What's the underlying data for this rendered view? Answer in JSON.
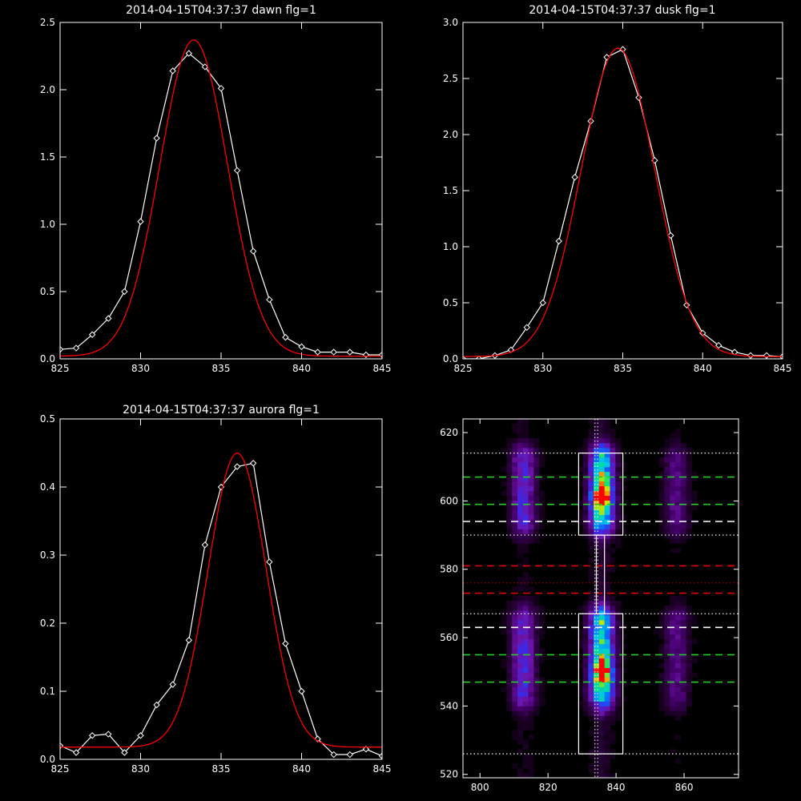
{
  "chart_data": [
    {
      "type": "line",
      "title": "2014-04-15T04:37:37 dawn flg=1",
      "xlim": [
        825,
        845
      ],
      "ylim": [
        0,
        2.5
      ],
      "xticks": [
        825,
        830,
        835,
        840,
        845
      ],
      "yticks": [
        0.0,
        0.5,
        1.0,
        1.5,
        2.0,
        2.5
      ],
      "series": [
        {
          "role": "measured",
          "color": "#ffffff",
          "marker": "diamond",
          "x": [
            825,
            826,
            827,
            828,
            829,
            830,
            831,
            832,
            833,
            834,
            835,
            836,
            837,
            838,
            839,
            840,
            841,
            842,
            843,
            844,
            845
          ],
          "y": [
            0.07,
            0.08,
            0.18,
            0.3,
            0.5,
            1.02,
            1.64,
            2.14,
            2.27,
            2.17,
            2.01,
            1.4,
            0.8,
            0.44,
            0.16,
            0.09,
            0.05,
            0.05,
            0.05,
            0.03,
            0.03
          ]
        },
        {
          "role": "fit",
          "color": "#ff0000",
          "shape": "gaussian",
          "center": 833.3,
          "sigma": 2.1,
          "amplitude": 2.35,
          "offset": 0.02
        }
      ]
    },
    {
      "type": "line",
      "title": "2014-04-15T04:37:37 dusk flg=1",
      "xlim": [
        825,
        845
      ],
      "ylim": [
        0,
        3.0
      ],
      "xticks": [
        825,
        830,
        835,
        840,
        845
      ],
      "yticks": [
        0.0,
        0.5,
        1.0,
        1.5,
        2.0,
        2.5,
        3.0
      ],
      "series": [
        {
          "role": "measured",
          "color": "#ffffff",
          "marker": "diamond",
          "x": [
            825,
            826,
            827,
            828,
            829,
            830,
            831,
            832,
            833,
            834,
            835,
            836,
            837,
            838,
            839,
            840,
            841,
            842,
            843,
            844,
            845
          ],
          "y": [
            0.0,
            0.0,
            0.03,
            0.08,
            0.28,
            0.5,
            1.05,
            1.62,
            2.12,
            2.69,
            2.76,
            2.33,
            1.77,
            1.1,
            0.48,
            0.23,
            0.12,
            0.06,
            0.03,
            0.03,
            0.02
          ]
        },
        {
          "role": "fit",
          "color": "#ff0000",
          "shape": "gaussian",
          "center": 834.7,
          "sigma": 2.3,
          "amplitude": 2.75,
          "offset": 0.02
        }
      ]
    },
    {
      "type": "line",
      "title": "2014-04-15T04:37:37 aurora flg=1",
      "xlim": [
        825,
        845
      ],
      "ylim": [
        0,
        0.5
      ],
      "xticks": [
        825,
        830,
        835,
        840,
        845
      ],
      "yticks": [
        0.0,
        0.1,
        0.2,
        0.3,
        0.4,
        0.5
      ],
      "series": [
        {
          "role": "measured",
          "color": "#ffffff",
          "marker": "diamond",
          "x": [
            825,
            826,
            827,
            828,
            829,
            830,
            831,
            832,
            833,
            834,
            835,
            836,
            837,
            838,
            839,
            840,
            841,
            842,
            843,
            844,
            845
          ],
          "y": [
            0.02,
            0.01,
            0.035,
            0.037,
            0.01,
            0.035,
            0.08,
            0.11,
            0.175,
            0.315,
            0.4,
            0.43,
            0.435,
            0.29,
            0.17,
            0.1,
            0.03,
            0.007,
            0.007,
            0.015,
            0.005
          ]
        },
        {
          "role": "fit",
          "color": "#ff0000",
          "shape": "gaussian",
          "center": 836.0,
          "sigma": 1.8,
          "amplitude": 0.432,
          "offset": 0.018
        }
      ]
    },
    {
      "type": "heatmap",
      "xlim": [
        795,
        876
      ],
      "ylim": [
        519,
        624
      ],
      "xticks": [
        800,
        820,
        840,
        860
      ],
      "yticks": [
        520,
        540,
        560,
        580,
        600,
        620
      ],
      "emission_columns_x": [
        812,
        835,
        857
      ],
      "hot_spots": [
        {
          "x": 835,
          "y": 601
        },
        {
          "x": 835,
          "y": 549
        }
      ],
      "vertical_reference_lines_x": [
        833.8,
        834.6
      ],
      "outline_boxes": [
        {
          "x": [
            829,
            842
          ],
          "y": [
            590,
            614
          ]
        },
        {
          "x": [
            829,
            842
          ],
          "y": [
            526,
            567
          ]
        },
        {
          "x": [
            834.2,
            836.6
          ],
          "y": [
            567,
            590
          ]
        }
      ],
      "horizontal_lines": [
        {
          "y": 614,
          "color": "#ffffff",
          "style": "dotted"
        },
        {
          "y": 607,
          "color": "#22cc22",
          "style": "dashed"
        },
        {
          "y": 599,
          "color": "#22cc22",
          "style": "dashed"
        },
        {
          "y": 594,
          "color": "#ffffff",
          "style": "dashed"
        },
        {
          "y": 590,
          "color": "#ffffff",
          "style": "dotted"
        },
        {
          "y": 581,
          "color": "#dd0000",
          "style": "dashed"
        },
        {
          "y": 576,
          "color": "#aa0000",
          "style": "dotted"
        },
        {
          "y": 573,
          "color": "#dd0000",
          "style": "dashed"
        },
        {
          "y": 567,
          "color": "#ffffff",
          "style": "dotted"
        },
        {
          "y": 563,
          "color": "#ffffff",
          "style": "dashed"
        },
        {
          "y": 555,
          "color": "#22cc22",
          "style": "dashed"
        },
        {
          "y": 547,
          "color": "#22cc22",
          "style": "dashed"
        },
        {
          "y": 526,
          "color": "#ffffff",
          "style": "dotted"
        }
      ]
    }
  ]
}
